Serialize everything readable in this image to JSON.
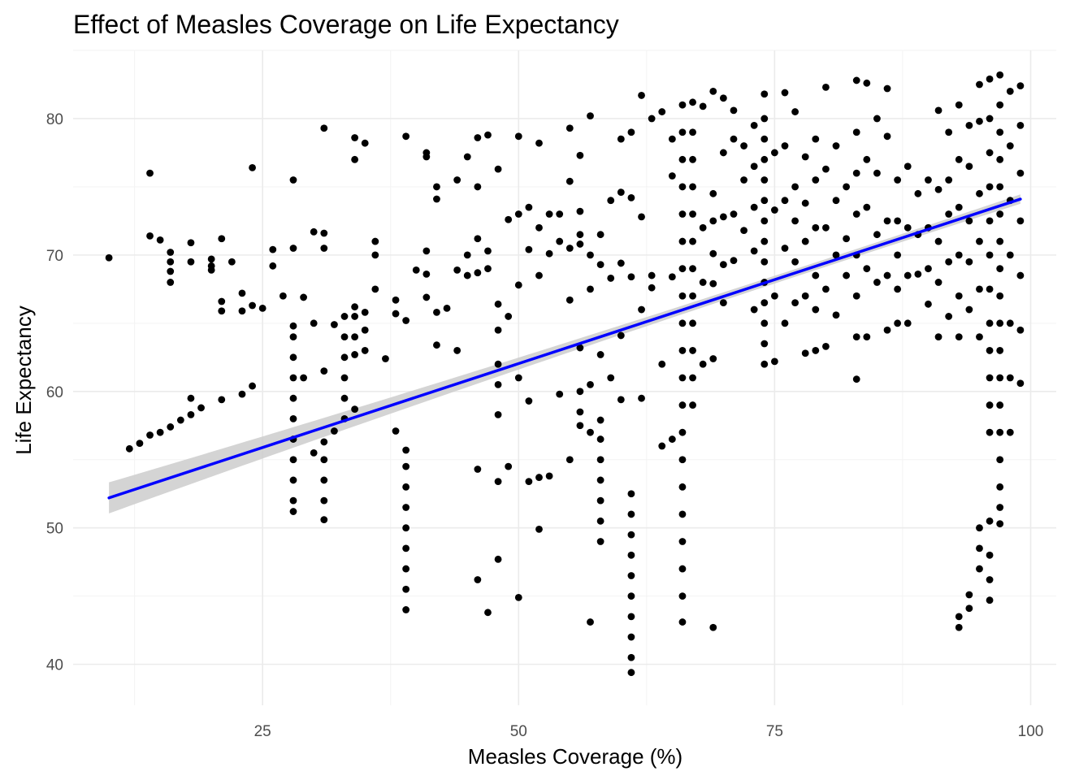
{
  "chart_data": {
    "type": "scatter",
    "title": "Effect of Measles Coverage on Life Expectancy",
    "xlabel": "Measles Coverage (%)",
    "ylabel": "Life Expectancy",
    "xlim": [
      6.5,
      102.5
    ],
    "ylim": [
      37,
      85
    ],
    "x_ticks": [
      25,
      50,
      75,
      100
    ],
    "y_ticks": [
      40,
      50,
      60,
      70,
      80
    ],
    "grid": true,
    "point_color": "#000000",
    "trend_line": {
      "type": "linear",
      "color": "#0000ff",
      "ci_color": "#cccccc",
      "x_start": 10,
      "x_end": 99,
      "y_start": 52.2,
      "y_end": 74.1
    },
    "points": [
      [
        10,
        69.8
      ],
      [
        12,
        55.8
      ],
      [
        13,
        56.2
      ],
      [
        14,
        56.8
      ],
      [
        14,
        71.4
      ],
      [
        14,
        76.0
      ],
      [
        15,
        57.0
      ],
      [
        15,
        71.1
      ],
      [
        16,
        57.4
      ],
      [
        16,
        70.2
      ],
      [
        16,
        69.5
      ],
      [
        16,
        68.8
      ],
      [
        16,
        68.0
      ],
      [
        17,
        57.9
      ],
      [
        18,
        58.3
      ],
      [
        18,
        59.5
      ],
      [
        18,
        69.5
      ],
      [
        18,
        70.9
      ],
      [
        19,
        58.8
      ],
      [
        20,
        68.9
      ],
      [
        20,
        69.2
      ],
      [
        20,
        69.7
      ],
      [
        21,
        59.4
      ],
      [
        21,
        65.9
      ],
      [
        21,
        66.6
      ],
      [
        21,
        71.2
      ],
      [
        22,
        69.5
      ],
      [
        23,
        59.8
      ],
      [
        23,
        65.9
      ],
      [
        23,
        67.2
      ],
      [
        24,
        60.4
      ],
      [
        24,
        66.3
      ],
      [
        24,
        76.4
      ],
      [
        25,
        66.1
      ],
      [
        26,
        69.2
      ],
      [
        26,
        70.4
      ],
      [
        27,
        67.0
      ],
      [
        28,
        51.2
      ],
      [
        28,
        52.0
      ],
      [
        28,
        53.5
      ],
      [
        28,
        55.0
      ],
      [
        28,
        56.5
      ],
      [
        28,
        58.0
      ],
      [
        28,
        59.5
      ],
      [
        28,
        61.0
      ],
      [
        28,
        62.5
      ],
      [
        28,
        64.0
      ],
      [
        28,
        64.8
      ],
      [
        28,
        70.5
      ],
      [
        28,
        75.5
      ],
      [
        29,
        66.9
      ],
      [
        29,
        61.0
      ],
      [
        30,
        55.5
      ],
      [
        30,
        65.0
      ],
      [
        30,
        71.7
      ],
      [
        31,
        50.6
      ],
      [
        31,
        52.0
      ],
      [
        31,
        53.5
      ],
      [
        31,
        55.0
      ],
      [
        31,
        56.3
      ],
      [
        31,
        61.5
      ],
      [
        31,
        70.5
      ],
      [
        31,
        71.6
      ],
      [
        31,
        79.3
      ],
      [
        32,
        57.1
      ],
      [
        32,
        64.9
      ],
      [
        33,
        58.0
      ],
      [
        33,
        59.5
      ],
      [
        33,
        61.0
      ],
      [
        33,
        62.5
      ],
      [
        33,
        64.0
      ],
      [
        33,
        65.5
      ],
      [
        34,
        58.7
      ],
      [
        34,
        62.7
      ],
      [
        34,
        64.0
      ],
      [
        34,
        65.5
      ],
      [
        34,
        66.2
      ],
      [
        34,
        77.0
      ],
      [
        34,
        78.6
      ],
      [
        35,
        63.0
      ],
      [
        35,
        64.5
      ],
      [
        35,
        65.8
      ],
      [
        35,
        78.2
      ],
      [
        36,
        67.5
      ],
      [
        36,
        70.0
      ],
      [
        36,
        71.0
      ],
      [
        37,
        62.4
      ],
      [
        38,
        57.1
      ],
      [
        38,
        65.7
      ],
      [
        38,
        66.7
      ],
      [
        39,
        44.0
      ],
      [
        39,
        45.5
      ],
      [
        39,
        47.0
      ],
      [
        39,
        48.5
      ],
      [
        39,
        50.0
      ],
      [
        39,
        51.5
      ],
      [
        39,
        53.0
      ],
      [
        39,
        54.5
      ],
      [
        39,
        55.7
      ],
      [
        39,
        65.2
      ],
      [
        39,
        78.7
      ],
      [
        40,
        68.9
      ],
      [
        41,
        66.9
      ],
      [
        41,
        68.6
      ],
      [
        41,
        70.3
      ],
      [
        41,
        77.2
      ],
      [
        41,
        77.5
      ],
      [
        42,
        63.4
      ],
      [
        42,
        65.8
      ],
      [
        42,
        74.1
      ],
      [
        42,
        75.0
      ],
      [
        43,
        66.1
      ],
      [
        44,
        63.0
      ],
      [
        44,
        68.9
      ],
      [
        44,
        75.5
      ],
      [
        45,
        70.0
      ],
      [
        45,
        68.5
      ],
      [
        45,
        77.2
      ],
      [
        46,
        54.3
      ],
      [
        46,
        46.2
      ],
      [
        46,
        68.7
      ],
      [
        46,
        71.2
      ],
      [
        46,
        75.0
      ],
      [
        46,
        78.6
      ],
      [
        47,
        43.8
      ],
      [
        47,
        69.0
      ],
      [
        47,
        70.3
      ],
      [
        47,
        78.8
      ],
      [
        48,
        47.7
      ],
      [
        48,
        53.4
      ],
      [
        48,
        58.3
      ],
      [
        48,
        60.5
      ],
      [
        48,
        62.0
      ],
      [
        48,
        64.5
      ],
      [
        48,
        66.4
      ],
      [
        48,
        76.3
      ],
      [
        49,
        54.5
      ],
      [
        49,
        65.5
      ],
      [
        49,
        72.6
      ],
      [
        50,
        44.9
      ],
      [
        50,
        61.0
      ],
      [
        50,
        67.8
      ],
      [
        50,
        73.0
      ],
      [
        50,
        78.7
      ],
      [
        51,
        53.4
      ],
      [
        51,
        59.3
      ],
      [
        51,
        70.4
      ],
      [
        51,
        73.5
      ],
      [
        52,
        49.9
      ],
      [
        52,
        53.7
      ],
      [
        52,
        68.5
      ],
      [
        52,
        72.0
      ],
      [
        52,
        78.2
      ],
      [
        53,
        53.8
      ],
      [
        53,
        70.1
      ],
      [
        53,
        73.0
      ],
      [
        54,
        59.8
      ],
      [
        54,
        71.0
      ],
      [
        54,
        73.0
      ],
      [
        55,
        55.0
      ],
      [
        55,
        66.7
      ],
      [
        55,
        70.5
      ],
      [
        55,
        75.4
      ],
      [
        55,
        79.3
      ],
      [
        56,
        57.5
      ],
      [
        56,
        58.5
      ],
      [
        56,
        60.0
      ],
      [
        56,
        63.2
      ],
      [
        56,
        70.8
      ],
      [
        56,
        71.5
      ],
      [
        56,
        73.2
      ],
      [
        56,
        77.3
      ],
      [
        57,
        43.1
      ],
      [
        57,
        57.0
      ],
      [
        57,
        60.5
      ],
      [
        57,
        67.5
      ],
      [
        57,
        70.0
      ],
      [
        57,
        80.2
      ],
      [
        58,
        49.0
      ],
      [
        58,
        50.5
      ],
      [
        58,
        52.0
      ],
      [
        58,
        53.5
      ],
      [
        58,
        55.0
      ],
      [
        58,
        56.5
      ],
      [
        58,
        57.9
      ],
      [
        58,
        62.7
      ],
      [
        58,
        69.3
      ],
      [
        58,
        71.5
      ],
      [
        59,
        61.0
      ],
      [
        59,
        68.3
      ],
      [
        59,
        74.0
      ],
      [
        60,
        59.4
      ],
      [
        60,
        64.1
      ],
      [
        60,
        69.4
      ],
      [
        60,
        74.6
      ],
      [
        60,
        78.5
      ],
      [
        61,
        39.4
      ],
      [
        61,
        40.5
      ],
      [
        61,
        42.0
      ],
      [
        61,
        43.5
      ],
      [
        61,
        45.0
      ],
      [
        61,
        46.5
      ],
      [
        61,
        48.0
      ],
      [
        61,
        49.5
      ],
      [
        61,
        51.0
      ],
      [
        61,
        52.5
      ],
      [
        61,
        68.4
      ],
      [
        61,
        74.2
      ],
      [
        61,
        79.0
      ],
      [
        62,
        59.5
      ],
      [
        62,
        66.0
      ],
      [
        62,
        72.8
      ],
      [
        62,
        81.7
      ],
      [
        63,
        68.5
      ],
      [
        63,
        67.6
      ],
      [
        63,
        80.0
      ],
      [
        64,
        56.0
      ],
      [
        64,
        62.0
      ],
      [
        64,
        80.5
      ],
      [
        65,
        56.5
      ],
      [
        65,
        68.4
      ],
      [
        65,
        75.8
      ],
      [
        65,
        78.5
      ],
      [
        66,
        43.1
      ],
      [
        66,
        45.0
      ],
      [
        66,
        47.0
      ],
      [
        66,
        49.0
      ],
      [
        66,
        51.0
      ],
      [
        66,
        53.0
      ],
      [
        66,
        55.0
      ],
      [
        66,
        57.0
      ],
      [
        66,
        59.0
      ],
      [
        66,
        61.0
      ],
      [
        66,
        63.0
      ],
      [
        66,
        65.0
      ],
      [
        66,
        67.0
      ],
      [
        66,
        69.0
      ],
      [
        66,
        71.0
      ],
      [
        66,
        73.0
      ],
      [
        66,
        75.0
      ],
      [
        66,
        77.0
      ],
      [
        66,
        79.0
      ],
      [
        66,
        81.0
      ],
      [
        67,
        59.0
      ],
      [
        67,
        61.0
      ],
      [
        67,
        63.0
      ],
      [
        67,
        65.0
      ],
      [
        67,
        67.0
      ],
      [
        67,
        69.0
      ],
      [
        67,
        71.0
      ],
      [
        67,
        73.0
      ],
      [
        67,
        75.0
      ],
      [
        67,
        77.0
      ],
      [
        67,
        79.0
      ],
      [
        67,
        81.2
      ],
      [
        68,
        62.0
      ],
      [
        68,
        68.0
      ],
      [
        68,
        72.0
      ],
      [
        68,
        80.9
      ],
      [
        69,
        42.7
      ],
      [
        69,
        62.4
      ],
      [
        69,
        67.9
      ],
      [
        69,
        70.1
      ],
      [
        69,
        72.5
      ],
      [
        69,
        74.5
      ],
      [
        69,
        82.0
      ],
      [
        70,
        66.5
      ],
      [
        70,
        69.3
      ],
      [
        70,
        72.8
      ],
      [
        70,
        77.5
      ],
      [
        70,
        81.5
      ],
      [
        71,
        69.6
      ],
      [
        71,
        73.0
      ],
      [
        71,
        78.5
      ],
      [
        71,
        80.6
      ],
      [
        72,
        71.8
      ],
      [
        72,
        75.5
      ],
      [
        72,
        78.0
      ],
      [
        73,
        66.0
      ],
      [
        73,
        70.3
      ],
      [
        73,
        73.5
      ],
      [
        73,
        76.5
      ],
      [
        73,
        79.5
      ],
      [
        74,
        62.0
      ],
      [
        74,
        63.5
      ],
      [
        74,
        65.0
      ],
      [
        74,
        66.5
      ],
      [
        74,
        68.0
      ],
      [
        74,
        69.5
      ],
      [
        74,
        71.0
      ],
      [
        74,
        72.5
      ],
      [
        74,
        74.0
      ],
      [
        74,
        75.5
      ],
      [
        74,
        77.0
      ],
      [
        74,
        78.5
      ],
      [
        74,
        80.0
      ],
      [
        74,
        81.8
      ],
      [
        75,
        62.2
      ],
      [
        75,
        67.0
      ],
      [
        75,
        73.3
      ],
      [
        75,
        77.5
      ],
      [
        76,
        65.0
      ],
      [
        76,
        70.5
      ],
      [
        76,
        74.0
      ],
      [
        76,
        78.0
      ],
      [
        76,
        81.9
      ],
      [
        77,
        66.5
      ],
      [
        77,
        69.5
      ],
      [
        77,
        72.5
      ],
      [
        77,
        75.0
      ],
      [
        77,
        80.5
      ],
      [
        78,
        62.8
      ],
      [
        78,
        67.0
      ],
      [
        78,
        71.0
      ],
      [
        78,
        73.8
      ],
      [
        78,
        77.2
      ],
      [
        79,
        63.0
      ],
      [
        79,
        66.0
      ],
      [
        79,
        68.5
      ],
      [
        79,
        72.0
      ],
      [
        79,
        75.5
      ],
      [
        79,
        78.5
      ],
      [
        80,
        63.3
      ],
      [
        80,
        67.5
      ],
      [
        80,
        72.0
      ],
      [
        80,
        76.3
      ],
      [
        80,
        82.3
      ],
      [
        81,
        65.6
      ],
      [
        81,
        70.0
      ],
      [
        81,
        74.0
      ],
      [
        81,
        78.0
      ],
      [
        82,
        68.5
      ],
      [
        82,
        71.2
      ],
      [
        82,
        75.0
      ],
      [
        83,
        60.9
      ],
      [
        83,
        64.0
      ],
      [
        83,
        67.0
      ],
      [
        83,
        70.0
      ],
      [
        83,
        73.0
      ],
      [
        83,
        76.0
      ],
      [
        83,
        79.0
      ],
      [
        83,
        82.8
      ],
      [
        84,
        64.0
      ],
      [
        84,
        69.0
      ],
      [
        84,
        73.5
      ],
      [
        84,
        77.0
      ],
      [
        84,
        82.6
      ],
      [
        85,
        68.0
      ],
      [
        85,
        71.5
      ],
      [
        85,
        76.0
      ],
      [
        85,
        80.0
      ],
      [
        86,
        64.5
      ],
      [
        86,
        68.5
      ],
      [
        86,
        72.5
      ],
      [
        86,
        78.7
      ],
      [
        86,
        82.2
      ],
      [
        87,
        65.0
      ],
      [
        87,
        67.5
      ],
      [
        87,
        70.0
      ],
      [
        87,
        72.5
      ],
      [
        87,
        75.5
      ],
      [
        88,
        65.0
      ],
      [
        88,
        68.5
      ],
      [
        88,
        72.0
      ],
      [
        88,
        76.5
      ],
      [
        89,
        68.6
      ],
      [
        89,
        71.5
      ],
      [
        89,
        74.5
      ],
      [
        90,
        66.4
      ],
      [
        90,
        69.0
      ],
      [
        90,
        72.0
      ],
      [
        90,
        75.5
      ],
      [
        91,
        64.0
      ],
      [
        91,
        68.0
      ],
      [
        91,
        71.0
      ],
      [
        91,
        74.8
      ],
      [
        91,
        80.6
      ],
      [
        92,
        65.5
      ],
      [
        92,
        69.5
      ],
      [
        92,
        73.0
      ],
      [
        92,
        75.5
      ],
      [
        92,
        79.0
      ],
      [
        93,
        42.7
      ],
      [
        93,
        43.5
      ],
      [
        93,
        64.0
      ],
      [
        93,
        67.0
      ],
      [
        93,
        70.0
      ],
      [
        93,
        73.5
      ],
      [
        93,
        77.0
      ],
      [
        93,
        81.0
      ],
      [
        94,
        44.1
      ],
      [
        94,
        45.1
      ],
      [
        94,
        66.0
      ],
      [
        94,
        69.5
      ],
      [
        94,
        72.5
      ],
      [
        94,
        76.5
      ],
      [
        94,
        79.5
      ],
      [
        95,
        47.0
      ],
      [
        95,
        48.5
      ],
      [
        95,
        50.0
      ],
      [
        95,
        64.0
      ],
      [
        95,
        67.5
      ],
      [
        95,
        71.0
      ],
      [
        95,
        74.5
      ],
      [
        95,
        79.8
      ],
      [
        95,
        82.5
      ],
      [
        96,
        44.7
      ],
      [
        96,
        46.2
      ],
      [
        96,
        48.0
      ],
      [
        96,
        50.5
      ],
      [
        96,
        57.0
      ],
      [
        96,
        59.0
      ],
      [
        96,
        61.0
      ],
      [
        96,
        63.0
      ],
      [
        96,
        65.0
      ],
      [
        96,
        67.5
      ],
      [
        96,
        70.0
      ],
      [
        96,
        72.5
      ],
      [
        96,
        75.0
      ],
      [
        96,
        77.5
      ],
      [
        96,
        80.0
      ],
      [
        96,
        82.9
      ],
      [
        97,
        50.3
      ],
      [
        97,
        51.5
      ],
      [
        97,
        53.0
      ],
      [
        97,
        55.0
      ],
      [
        97,
        57.0
      ],
      [
        97,
        59.0
      ],
      [
        97,
        61.0
      ],
      [
        97,
        63.0
      ],
      [
        97,
        65.0
      ],
      [
        97,
        67.0
      ],
      [
        97,
        69.0
      ],
      [
        97,
        71.0
      ],
      [
        97,
        73.0
      ],
      [
        97,
        75.0
      ],
      [
        97,
        77.0
      ],
      [
        97,
        79.0
      ],
      [
        97,
        81.0
      ],
      [
        97,
        83.2
      ],
      [
        98,
        57.0
      ],
      [
        98,
        61.0
      ],
      [
        98,
        65.0
      ],
      [
        98,
        70.0
      ],
      [
        98,
        74.0
      ],
      [
        98,
        78.0
      ],
      [
        98,
        82.0
      ],
      [
        99,
        60.6
      ],
      [
        99,
        64.5
      ],
      [
        99,
        68.5
      ],
      [
        99,
        72.5
      ],
      [
        99,
        76.0
      ],
      [
        99,
        79.5
      ],
      [
        99,
        82.4
      ]
    ]
  }
}
